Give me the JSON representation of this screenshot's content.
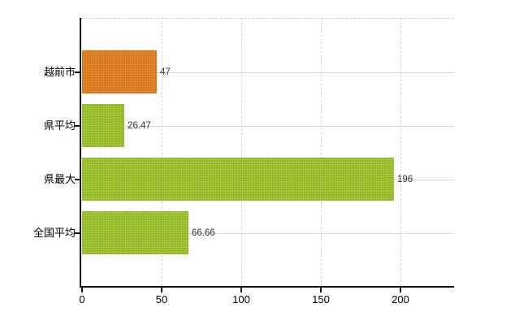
{
  "chart_data": {
    "type": "bar",
    "orientation": "horizontal",
    "title": "",
    "xlabel": "",
    "ylabel": "",
    "categories": [
      "越前市",
      "県平均",
      "県最大",
      "全国平均"
    ],
    "values": [
      47,
      26.47,
      196,
      66.66
    ],
    "value_labels": [
      "47",
      "26.47",
      "196",
      "66.66"
    ],
    "series": [
      {
        "name": "values",
        "values": [
          47,
          26.47,
          196,
          66.66
        ]
      }
    ],
    "x_ticks": [
      0,
      50,
      100,
      150,
      200
    ],
    "x_tick_labels": [
      "0",
      "50",
      "100",
      "150",
      "200"
    ],
    "xlim": [
      0,
      234
    ],
    "grid": true,
    "legend_position": "none",
    "colors": {
      "highlight_bar": "#e5801f",
      "default_bar": "#9ec72f",
      "axis": "#141414",
      "gridline_horizontal": "#d7dcd4",
      "gridline_vertical": "#d6d6d6",
      "plot_top_border": "#cccccc",
      "value_label_text": "#2e3136",
      "category_label_text": "#000000"
    },
    "bar_color_keys": [
      "highlight_bar",
      "default_bar",
      "default_bar",
      "default_bar"
    ]
  }
}
